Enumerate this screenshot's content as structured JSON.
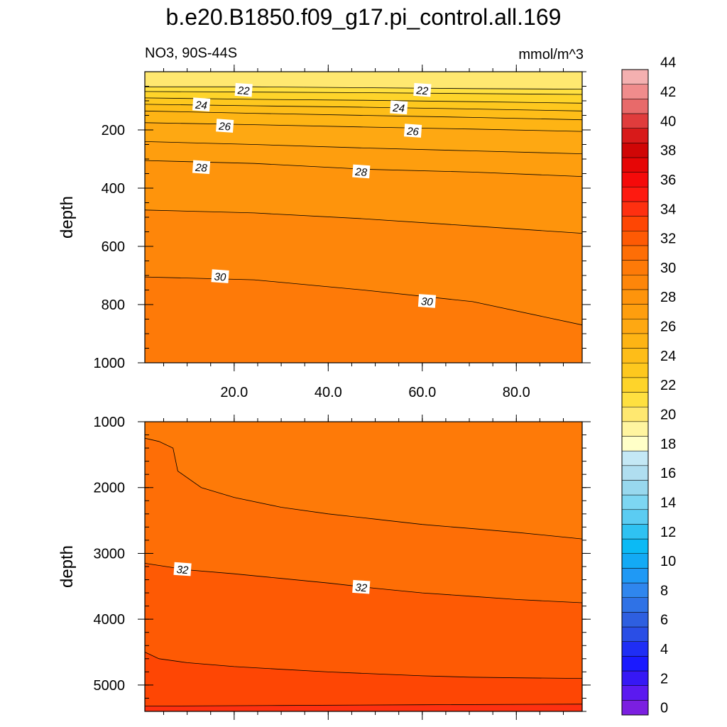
{
  "colors": {
    "palette": [
      "#7b1fe0",
      "#5b1af0",
      "#3618f5",
      "#1a1aff",
      "#1f2ef5",
      "#2a4ee6",
      "#2e5fe0",
      "#2f72e6",
      "#2f86ee",
      "#1f99f5",
      "#13aaf5",
      "#0bbaf5",
      "#2fc2f2",
      "#5bccf2",
      "#7dd6f2",
      "#98d8ee",
      "#b0def0",
      "#c4e8f5",
      "#ffffc8",
      "#fff5a0",
      "#ffe870",
      "#ffe040",
      "#fed42a",
      "#fec81e",
      "#febd18",
      "#feb414",
      "#fea812",
      "#fe9e0e",
      "#fe940c",
      "#fe860a",
      "#fe7a08",
      "#fe6e06",
      "#fe5a04",
      "#fe4604",
      "#fe3010",
      "#fe1a10",
      "#f50a0a",
      "#e60606",
      "#d00606",
      "#d81a1a",
      "#e03c3c",
      "#e86a6a",
      "#f08c8c",
      "#f4b0b0"
    ],
    "line": "#000000"
  },
  "chart_data": {
    "title": "b.e20.B1850.f09_g17.pi_control.all.169",
    "left_string": "NO3, 90S-44S",
    "right_string": "mmol/m^3",
    "x_range": [
      1,
      94
    ],
    "panels": [
      {
        "type": "contour",
        "ylabel": "depth",
        "ylim": [
          0,
          1000
        ],
        "y_inverted": true,
        "y_ticks": [
          200,
          400,
          600,
          800,
          1000
        ],
        "x_ticks": [
          20,
          40,
          60,
          80
        ],
        "x_tick_labels": [
          "20.0",
          "40.0",
          "60.0",
          "80.0"
        ],
        "levels": [
          {
            "value": 21,
            "y": [
              52,
              52,
              55,
              58,
              60
            ]
          },
          {
            "value": 22,
            "y": [
              68,
              70,
              72,
              75,
              78
            ]
          },
          {
            "value": 23,
            "y": [
              90,
              95,
              98,
              103,
              108
            ]
          },
          {
            "value": 24,
            "y": [
              112,
              117,
              122,
              128,
              135
            ]
          },
          {
            "value": 25,
            "y": [
              135,
              143,
              150,
              157,
              165
            ]
          },
          {
            "value": 26,
            "y": [
              175,
              182,
              190,
              197,
              205
            ]
          },
          {
            "value": 27,
            "y": [
              240,
              250,
              262,
              272,
              282
            ]
          },
          {
            "value": 28,
            "y": [
              305,
              315,
              335,
              345,
              360
            ]
          },
          {
            "value": 29,
            "y": [
              475,
              485,
              505,
              530,
              555
            ]
          },
          {
            "value": 30,
            "y": [
              705,
              715,
              750,
              790,
              870
            ]
          }
        ],
        "labels": [
          {
            "text": "22",
            "x": 22,
            "y": 65
          },
          {
            "text": "22",
            "x": 60,
            "y": 65
          },
          {
            "text": "24",
            "x": 13,
            "y": 115
          },
          {
            "text": "24",
            "x": 55,
            "y": 125
          },
          {
            "text": "26",
            "x": 18,
            "y": 188
          },
          {
            "text": "26",
            "x": 58,
            "y": 205
          },
          {
            "text": "28",
            "x": 13,
            "y": 330
          },
          {
            "text": "28",
            "x": 47,
            "y": 345
          },
          {
            "text": "30",
            "x": 17,
            "y": 705
          },
          {
            "text": "30",
            "x": 61,
            "y": 790
          }
        ]
      },
      {
        "type": "contour",
        "ylabel": "depth",
        "ylim": [
          1000,
          5400
        ],
        "y_inverted": true,
        "y_ticks": [
          1000,
          2000,
          3000,
          4000,
          5000
        ],
        "levels": [
          {
            "value": 31,
            "x": [
              1,
              4,
              7,
              8,
              13,
              20,
              30,
              40,
              50,
              60,
              70,
              80,
              94
            ],
            "y": [
              1250,
              1300,
              1400,
              1750,
              2000,
              2150,
              2300,
              2400,
              2480,
              2560,
              2620,
              2680,
              2780
            ]
          },
          {
            "value": 32,
            "x": [
              1,
              10,
              20,
              30,
              40,
              50,
              60,
              70,
              80,
              94
            ],
            "y": [
              3150,
              3250,
              3310,
              3380,
              3450,
              3530,
              3600,
              3650,
              3700,
              3750
            ]
          },
          {
            "value": 33,
            "x": [
              1,
              4,
              10,
              20,
              30,
              40,
              50,
              60,
              70,
              80,
              94
            ],
            "y": [
              4500,
              4600,
              4660,
              4720,
              4760,
              4800,
              4830,
              4860,
              4880,
              4890,
              4900
            ]
          },
          {
            "value": 34,
            "x": [
              1,
              30,
              60,
              94
            ],
            "y": [
              5320,
              5310,
              5300,
              5290
            ]
          }
        ],
        "labels": [
          {
            "text": "32",
            "x": 9,
            "y": 3250
          },
          {
            "text": "32",
            "x": 47,
            "y": 3520
          }
        ]
      }
    ],
    "colorbar": {
      "min": 0,
      "max": 46,
      "step": 1,
      "tick_labels": [
        "0",
        "2",
        "4",
        "6",
        "8",
        "10",
        "12",
        "14",
        "16",
        "18",
        "20",
        "22",
        "24",
        "26",
        "28",
        "30",
        "32",
        "34",
        "36",
        "38",
        "40",
        "42",
        "44"
      ]
    }
  }
}
